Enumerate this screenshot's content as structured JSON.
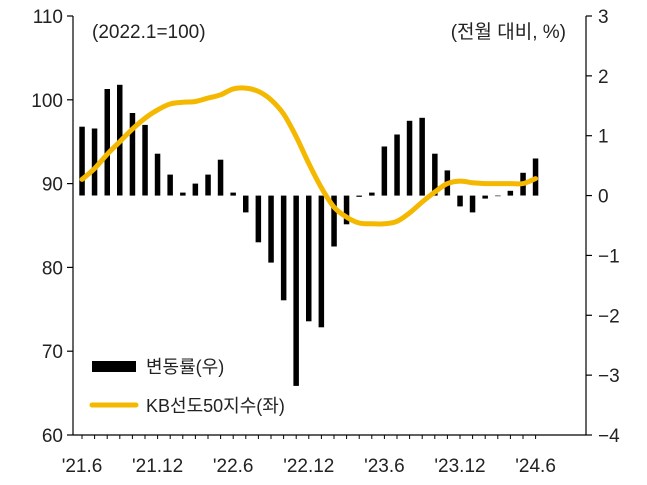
{
  "chart_data": {
    "type": "bar+line",
    "left_axis_note": "(2022.1=100)",
    "right_axis_note": "(전월 대비, %)",
    "left_ylim": [
      60,
      110
    ],
    "left_ticks": [
      "110",
      "100",
      "90",
      "80",
      "70",
      "60"
    ],
    "left_tick_values": [
      110,
      100,
      90,
      80,
      70,
      60
    ],
    "right_ylim": [
      -4,
      3
    ],
    "right_ticks": [
      "3",
      "2",
      "1",
      "0",
      "−1",
      "−2",
      "−3",
      "−4"
    ],
    "right_tick_values": [
      3,
      2,
      1,
      0,
      -1,
      -2,
      -3,
      -4
    ],
    "x_labels": [
      "'21.6",
      "'21.12",
      "'22.6",
      "'22.12",
      "'23.6",
      "'23.12",
      "'24.6"
    ],
    "x_label_index": [
      0,
      6,
      12,
      18,
      24,
      30,
      36
    ],
    "months": [
      "'21.6",
      "'21.7",
      "'21.8",
      "'21.9",
      "'21.10",
      "'21.11",
      "'21.12",
      "'22.1",
      "'22.2",
      "'22.3",
      "'22.4",
      "'22.5",
      "'22.6",
      "'22.7",
      "'22.8",
      "'22.9",
      "'22.10",
      "'22.11",
      "'22.12",
      "'23.1",
      "'23.2",
      "'23.3",
      "'23.4",
      "'23.5",
      "'23.6",
      "'23.7",
      "'23.8",
      "'23.9",
      "'23.10",
      "'23.11",
      "'23.12",
      "'24.1",
      "'24.2",
      "'24.3",
      "'24.4",
      "'24.5",
      "'24.6"
    ],
    "series": [
      {
        "name": "변동률(우)",
        "kind": "bar",
        "axis": "right",
        "color": "#000000",
        "values": [
          1.15,
          1.12,
          1.78,
          1.85,
          1.38,
          1.18,
          0.7,
          0.35,
          0.05,
          0.2,
          0.35,
          0.6,
          0.05,
          -0.28,
          -0.78,
          -1.12,
          -1.75,
          -3.18,
          -2.1,
          -2.2,
          -0.85,
          -0.48,
          -0.02,
          0.05,
          0.82,
          1.02,
          1.25,
          1.3,
          0.7,
          0.42,
          -0.18,
          -0.28,
          -0.05,
          0.0,
          0.08,
          0.38,
          0.62
        ]
      },
      {
        "name": "KB선도50지수(좌)",
        "kind": "line",
        "axis": "left",
        "color": "#f5b800",
        "values": [
          90.5,
          91.8,
          93.5,
          95.0,
          96.5,
          97.8,
          98.8,
          99.5,
          99.7,
          99.8,
          100.2,
          100.6,
          101.3,
          101.4,
          101.0,
          100.0,
          98.3,
          95.6,
          92.4,
          89.5,
          87.2,
          86.0,
          85.3,
          85.2,
          85.2,
          85.5,
          86.5,
          87.8,
          89.0,
          90.0,
          90.3,
          90.1,
          90.0,
          90.0,
          90.0,
          90.0,
          90.6
        ]
      }
    ]
  }
}
